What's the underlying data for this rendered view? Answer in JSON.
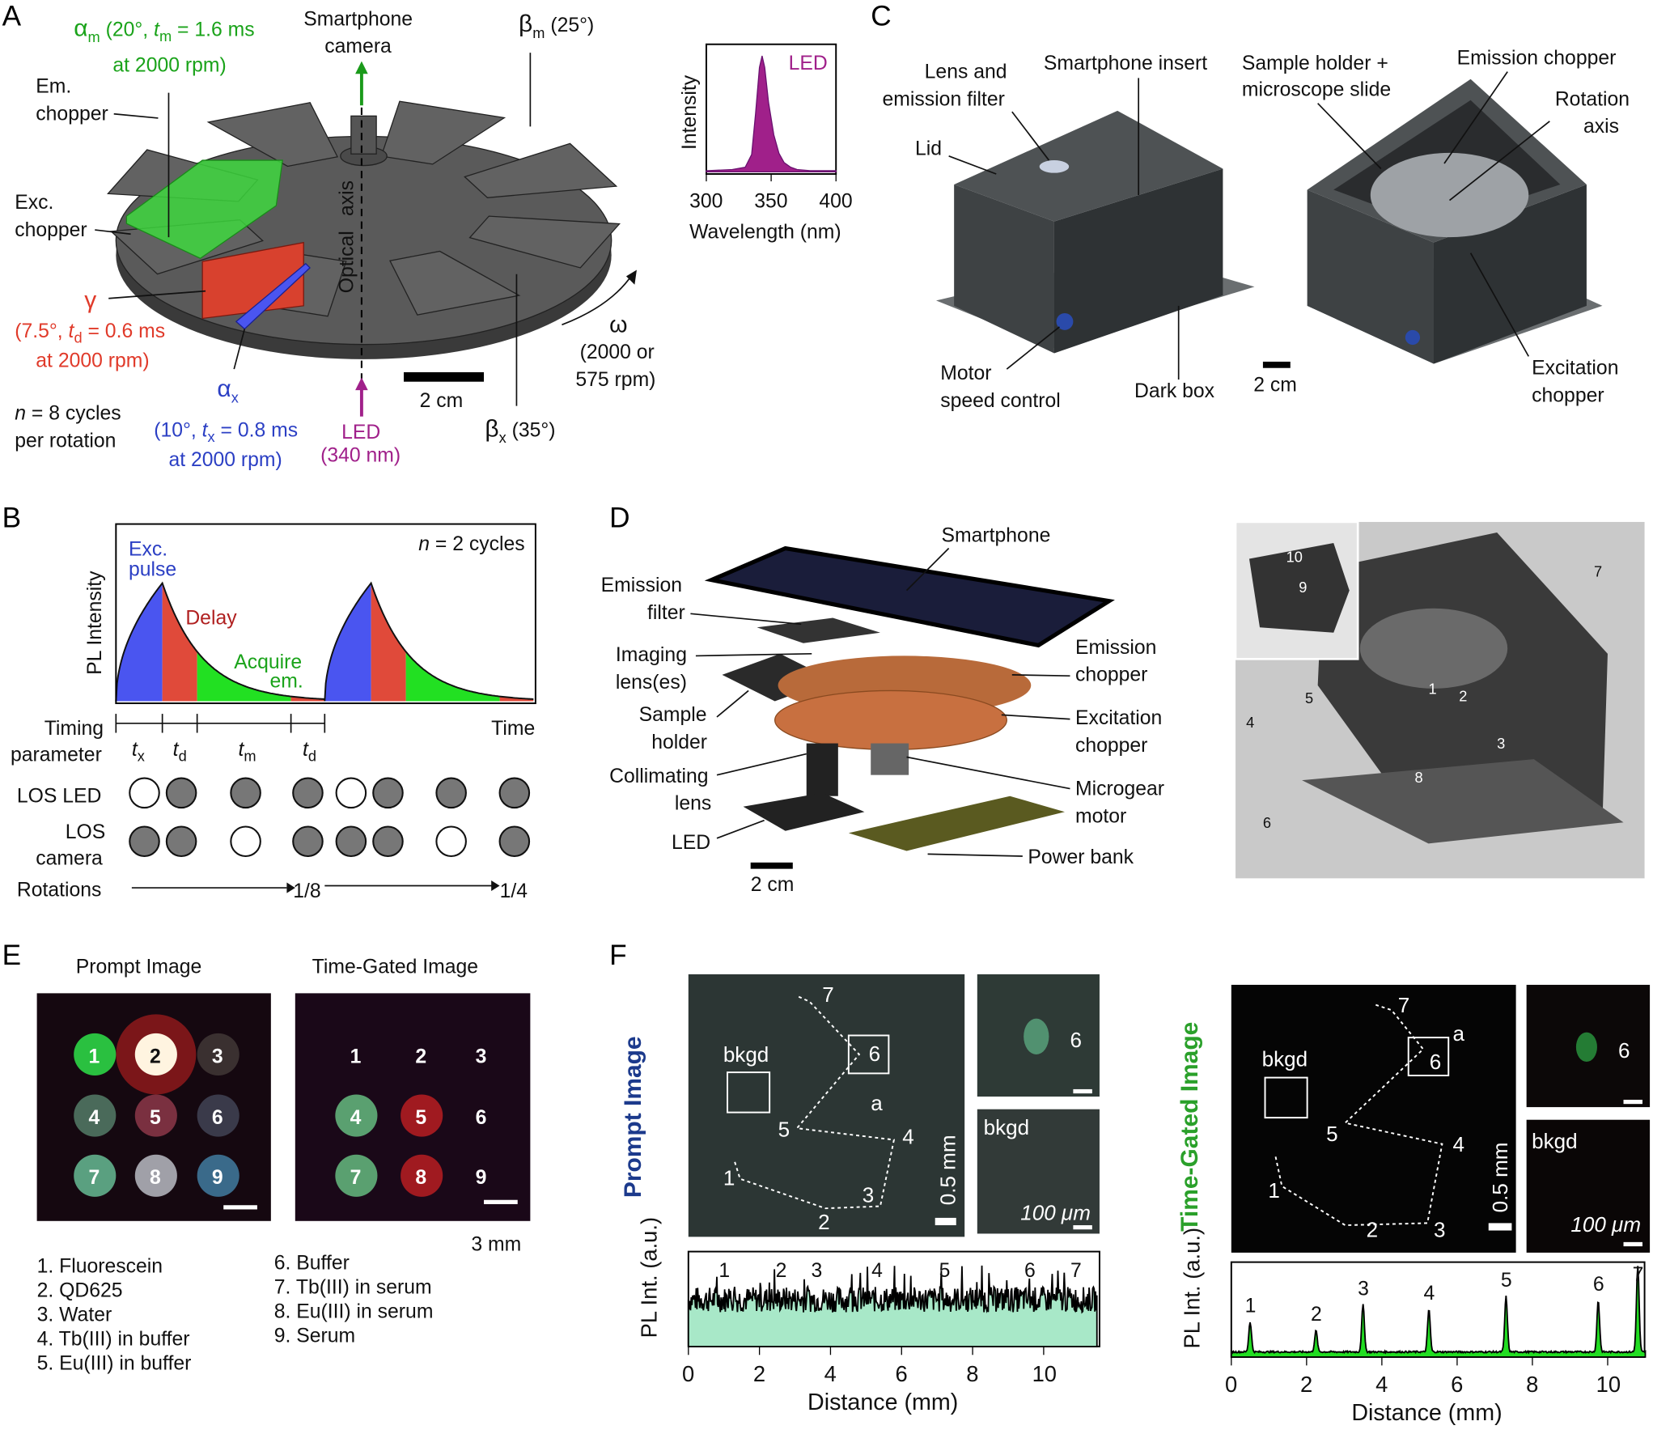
{
  "colors": {
    "green": "#1aa31a",
    "red": "#e03a2a",
    "blue": "#2b3fc4",
    "purple": "#a0208a",
    "disk": "#5a5a5a",
    "navy": "#1c3a8c",
    "gatedGreen": "#2aa02a"
  },
  "panels": {
    "A": "A",
    "B": "B",
    "C": "C",
    "D": "D",
    "E": "E",
    "F": "F"
  },
  "panelA": {
    "am": "α",
    "am_sub": "m",
    "am_rest": " (20°, ",
    "am_t": "t",
    "am_tsub": "m",
    "am_end": " = 1.6 ms",
    "am_rpm": "at 2000 rpm)",
    "camera1": "Smartphone",
    "camera2": "camera",
    "bm": "β",
    "bm_sub": "m",
    "bm_rest": " (25°)",
    "em1": "Em.",
    "em2": "chopper",
    "exc1": "Exc.",
    "exc2": "chopper",
    "gamma": "γ",
    "g1": "(7.5°, ",
    "g_t": "t",
    "g_tsub": "d",
    "g_end": " = 0.6 ms",
    "g_rpm": "at 2000 rpm)",
    "optical": "Optical",
    "axis": "axis",
    "n_cycles1": "n",
    "n_cycles1b": " = 8 cycles",
    "n_cycles2": "per rotation",
    "ax": "α",
    "ax_sub": "x",
    "ax1": "(10°, ",
    "ax_t": "t",
    "ax_tsub": "x",
    "ax_end": " = 0.8 ms",
    "ax_rpm": "at 2000 rpm)",
    "led1": "LED",
    "led2": "(340 nm)",
    "scale": "2 cm",
    "bx": "β",
    "bx_sub": "x",
    "bx_rest": " (35°)",
    "omega": "ω",
    "rpm1": "(2000 or",
    "rpm2": "575 rpm)"
  },
  "panelB": {
    "n_label": "n",
    "n_rest": " = 2 cycles",
    "exc1": "Exc.",
    "exc2": "pulse",
    "delay": "Delay",
    "acq1": "Acquire",
    "acq2": "em.",
    "ylabel": "PL Intensity",
    "time": "Time",
    "timing1": "Timing",
    "timing2": "parameter",
    "params": [
      {
        "t": "t",
        "s": "x"
      },
      {
        "t": "t",
        "s": "d"
      },
      {
        "t": "t",
        "s": "m"
      },
      {
        "t": "t",
        "s": "d"
      }
    ],
    "los_led": "LOS LED",
    "los_cam1": "LOS",
    "los_cam2": "camera",
    "rotations": "Rotations",
    "rot1": "1/8",
    "rot2": "1/4",
    "led_states": [
      false,
      true,
      true,
      true,
      false,
      true,
      true,
      true
    ],
    "camera_states": [
      true,
      true,
      false,
      true,
      true,
      true,
      false,
      true
    ]
  },
  "panelC": {
    "lens1": "Lens and",
    "lens2": "emission filter",
    "insert": "Smartphone insert",
    "sample1": "Sample holder +",
    "sample2": "microscope slide",
    "emchop": "Emission chopper",
    "rot1": "Rotation",
    "rot2": "axis",
    "lid": "Lid",
    "motor1": "Motor",
    "motor2": "speed control",
    "dark": "Dark box",
    "scale": "2 cm",
    "exc1": "Excitation",
    "exc2": "chopper"
  },
  "panelD": {
    "phone": "Smartphone",
    "emf1": "Emission",
    "emf2": "filter",
    "img1": "Imaging",
    "img2": "lens(es)",
    "sh1": "Sample",
    "sh2": "holder",
    "col1": "Collimating",
    "col2": "lens",
    "led": "LED",
    "emc1": "Emission",
    "emc2": "chopper",
    "exc1": "Excitation",
    "exc2": "chopper",
    "mg1": "Microgear",
    "mg2": "motor",
    "pb": "Power bank",
    "scale": "2 cm",
    "photo_labels": [
      "10",
      "9",
      "7",
      "5",
      "4",
      "1",
      "2",
      "3",
      "8",
      "6"
    ]
  },
  "panelE": {
    "prompt": "Prompt Image",
    "gated": "Time-Gated Image",
    "scale": "3 mm",
    "wells": [
      "1",
      "2",
      "3",
      "4",
      "5",
      "6",
      "7",
      "8",
      "9"
    ],
    "legend_left": [
      "1. Fluorescein",
      "2. QD625",
      "3. Water",
      "4. Tb(III) in buffer",
      "5. Eu(III) in buffer"
    ],
    "legend_right": [
      "6. Buffer",
      "7. Tb(III) in serum",
      "8. Eu(III) in serum",
      "9. Serum"
    ]
  },
  "panelF": {
    "prompt_title": "Prompt Image",
    "gated_title": "Time-Gated Image",
    "bkgd": "bkgd",
    "a": "a",
    "scale_mm": "0.5 mm",
    "scale_um": "100 μm",
    "six": "6",
    "points": [
      "1",
      "2",
      "3",
      "4",
      "5",
      "6",
      "7"
    ]
  },
  "chart_data": [
    {
      "type": "area",
      "id": "led-spectrum",
      "xlabel": "Wavelength (nm)",
      "ylabel": "Intensity",
      "legend": "LED",
      "xlim": [
        300,
        400
      ],
      "xticks": [
        "300",
        "350",
        "400"
      ],
      "color": "#a0208a",
      "x": [
        300,
        320,
        330,
        335,
        338,
        341,
        343,
        345,
        348,
        352,
        356,
        360,
        365,
        370,
        380,
        400
      ],
      "y": [
        0.01,
        0.02,
        0.04,
        0.15,
        0.5,
        0.9,
        1.0,
        0.9,
        0.6,
        0.32,
        0.16,
        0.08,
        0.04,
        0.02,
        0.01,
        0.01
      ]
    },
    {
      "type": "area",
      "id": "timing-diagram",
      "ylabel": "PL Intensity",
      "xlabel": "Time",
      "cycles": 2,
      "segments": [
        {
          "name": "Exc. pulse",
          "param": "tx",
          "color": "#4a55f0"
        },
        {
          "name": "Delay",
          "param": "td",
          "color": "#e04a3a"
        },
        {
          "name": "Acquire em.",
          "param": "tm",
          "color": "#22e022"
        },
        {
          "name": "",
          "param": "td",
          "color": "#e04a3a"
        }
      ]
    },
    {
      "type": "line",
      "id": "prompt-profile",
      "xlabel": "Distance (mm)",
      "ylabel": "PL Int. (a.u.)",
      "xlim": [
        0,
        11.5
      ],
      "xticks": [
        "0",
        "2",
        "4",
        "6",
        "8",
        "10"
      ],
      "peak_labels": [
        "1",
        "2",
        "3",
        "4",
        "5",
        "6",
        "7"
      ],
      "peak_x": [
        1.3,
        2.9,
        3.9,
        5.6,
        7.5,
        9.9,
        11.2
      ],
      "baseline": 0.55,
      "fill": "#a8e8c8"
    },
    {
      "type": "line",
      "id": "gated-profile",
      "xlabel": "Distance (mm)",
      "ylabel": "PL Int. (a.u.)",
      "xlim": [
        0,
        11
      ],
      "xticks": [
        "0",
        "2",
        "4",
        "6",
        "8",
        "10"
      ],
      "peak_labels": [
        "1",
        "2",
        "3",
        "4",
        "5",
        "6",
        "7"
      ],
      "peak_x": [
        0.5,
        2.25,
        3.5,
        5.25,
        7.3,
        9.75,
        10.8
      ],
      "peak_y": [
        0.35,
        0.25,
        0.55,
        0.5,
        0.65,
        0.6,
        1.0
      ],
      "baseline": 0.05,
      "fill": "#22dd22"
    }
  ]
}
